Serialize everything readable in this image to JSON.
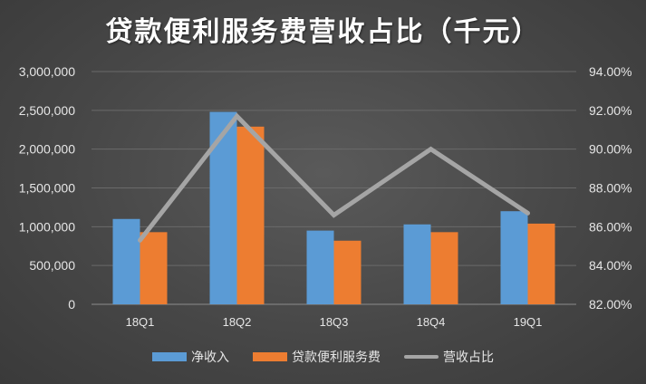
{
  "chart_data": {
    "type": "bar",
    "title": "贷款便利服务费营收占比（千元）",
    "categories": [
      "18Q1",
      "18Q2",
      "18Q3",
      "18Q4",
      "19Q1"
    ],
    "series": [
      {
        "name": "净收入",
        "kind": "bar",
        "axis": "left",
        "color": "#5b9bd5",
        "values": [
          1100000,
          2480000,
          950000,
          1030000,
          1200000
        ]
      },
      {
        "name": "贷款便利服务费",
        "kind": "bar",
        "axis": "left",
        "color": "#ed7d31",
        "values": [
          930000,
          2290000,
          820000,
          930000,
          1040000
        ]
      },
      {
        "name": "营收占比",
        "kind": "line",
        "axis": "right",
        "color": "#a5a5a5",
        "values": [
          85.3,
          91.7,
          86.6,
          90.0,
          86.7
        ]
      }
    ],
    "left_axis": {
      "ticks": [
        "0",
        "500,000",
        "1,000,000",
        "1,500,000",
        "2,000,000",
        "2,500,000",
        "3,000,000"
      ],
      "ylim": [
        0,
        3000000
      ]
    },
    "right_axis": {
      "ticks": [
        "82.00%",
        "84.00%",
        "86.00%",
        "88.00%",
        "90.00%",
        "92.00%",
        "94.00%"
      ],
      "ylim": [
        82,
        94
      ]
    },
    "grid": true,
    "legend_position": "bottom"
  }
}
